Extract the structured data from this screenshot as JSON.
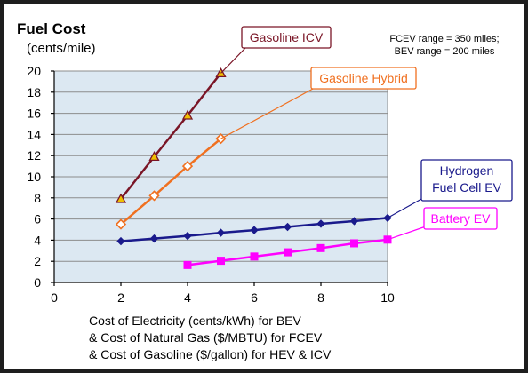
{
  "chart_data": {
    "type": "line",
    "title": "Fuel Cost",
    "subtitle": "(cents/mile)",
    "note": [
      "FCEV range = 350 miles;",
      "BEV range = 200 miles"
    ],
    "xlabel": [
      "Cost of Electricity (cents/kWh) for BEV",
      "& Cost of Natural Gas ($/MBTU) for FCEV",
      "& Cost of Gasoline ($/gallon) for HEV & ICV"
    ],
    "xlim": [
      0,
      10
    ],
    "ylim": [
      0,
      20
    ],
    "xticks": [
      0,
      2,
      4,
      6,
      8,
      10
    ],
    "yticks": [
      0,
      2,
      4,
      6,
      8,
      10,
      12,
      14,
      16,
      18,
      20
    ],
    "grid": true,
    "series": [
      {
        "name": "Gasoline ICV",
        "color": "#7a1526",
        "marker": "triangle",
        "marker_fill": "#f0c000",
        "labelLines": [
          "Gasoline ICV"
        ],
        "x": [
          2,
          3,
          4,
          5
        ],
        "y": [
          7.9,
          11.9,
          15.8,
          19.8
        ]
      },
      {
        "name": "Gasoline Hybrid",
        "color": "#f07020",
        "marker": "diamond-open",
        "marker_fill": "#ffffff",
        "labelLines": [
          "Gasoline Hybrid"
        ],
        "x": [
          2,
          3,
          4,
          5
        ],
        "y": [
          5.5,
          8.2,
          11.0,
          13.6
        ]
      },
      {
        "name": "Hydrogen Fuel Cell EV",
        "color": "#1a1a8c",
        "marker": "diamond",
        "marker_fill": "#1a1a8c",
        "labelLines": [
          "Hydrogen",
          "Fuel Cell EV"
        ],
        "x": [
          2,
          3,
          4,
          5,
          6,
          7,
          8,
          9,
          10
        ],
        "y": [
          3.9,
          4.15,
          4.4,
          4.7,
          4.95,
          5.25,
          5.55,
          5.8,
          6.1
        ]
      },
      {
        "name": "Battery EV",
        "color": "#ff00ff",
        "marker": "square",
        "marker_fill": "#ff00ff",
        "labelLines": [
          "Battery EV"
        ],
        "x": [
          4,
          5,
          6,
          7,
          8,
          9,
          10
        ],
        "y": [
          1.65,
          2.05,
          2.45,
          2.85,
          3.25,
          3.7,
          4.05
        ]
      }
    ]
  }
}
